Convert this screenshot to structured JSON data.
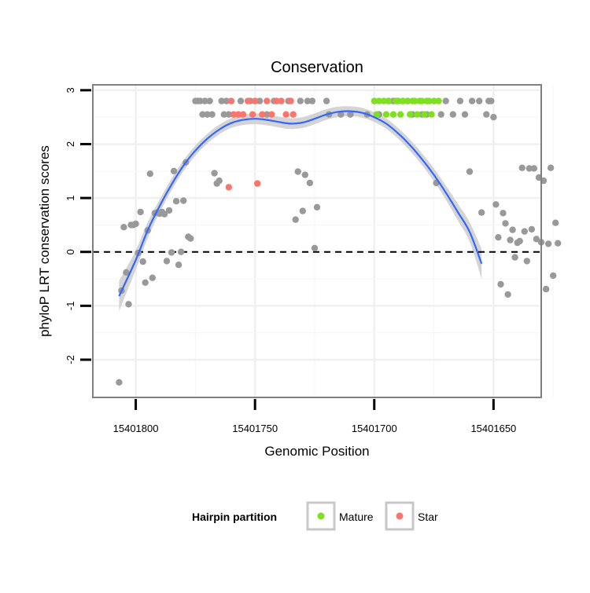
{
  "chart_data": {
    "type": "scatter",
    "title": "Conservation",
    "xlabel": "Genomic Position",
    "ylabel": "phyloP LRT conservation scores",
    "x_reversed": true,
    "xlim": [
      15401818,
      15401630
    ],
    "ylim": [
      -2.7,
      3.1
    ],
    "x_ticks": [
      15401800,
      15401750,
      15401700,
      15401650
    ],
    "x_tick_labels": [
      "15401800",
      "15401750",
      "15401700",
      "15401650"
    ],
    "y_ticks": [
      -2,
      -1,
      0,
      1,
      2,
      3
    ],
    "y_tick_labels": [
      "-2",
      "-1",
      "0",
      "1",
      "2",
      "3"
    ],
    "reference_line": {
      "y": 0,
      "style": "dashed"
    },
    "colors": {
      "Other": "#999999",
      "Mature": "#7fe020",
      "Star": "#f8766d",
      "smooth": "#3366ff",
      "band": "#cccccc"
    },
    "legend": {
      "title": "Hairpin partition",
      "position": "bottom",
      "entries": [
        "Mature",
        "Star"
      ]
    },
    "series": [
      {
        "name": "Other",
        "points": [
          [
            15401807,
            -2.42
          ],
          [
            15401806,
            -0.72
          ],
          [
            15401805,
            0.46
          ],
          [
            15401804,
            -0.38
          ],
          [
            15401803,
            -0.97
          ],
          [
            15401802,
            0.5
          ],
          [
            15401801,
            0.5
          ],
          [
            15401800,
            0.52
          ],
          [
            15401799,
            -0.02
          ],
          [
            15401798,
            0.74
          ],
          [
            15401797,
            -0.18
          ],
          [
            15401796,
            -0.57
          ],
          [
            15401795,
            0.4
          ],
          [
            15401794,
            1.45
          ],
          [
            15401793,
            -0.48
          ],
          [
            15401792,
            0.72
          ],
          [
            15401791,
            0.73
          ],
          [
            15401790,
            0.71
          ],
          [
            15401789,
            0.74
          ],
          [
            15401788,
            0.7
          ],
          [
            15401787,
            -0.17
          ],
          [
            15401786,
            0.77
          ],
          [
            15401785,
            -0.01
          ],
          [
            15401784,
            1.5
          ],
          [
            15401783,
            0.94
          ],
          [
            15401782,
            -0.24
          ],
          [
            15401781,
            0.0
          ],
          [
            15401780,
            0.95
          ],
          [
            15401779,
            1.66
          ],
          [
            15401778,
            0.28
          ],
          [
            15401777,
            0.25
          ],
          [
            15401775,
            2.8
          ],
          [
            15401774,
            2.8
          ],
          [
            15401773,
            2.8
          ],
          [
            15401772,
            2.55
          ],
          [
            15401771,
            2.8
          ],
          [
            15401770,
            2.55
          ],
          [
            15401769,
            2.8
          ],
          [
            15401768,
            2.55
          ],
          [
            15401767,
            1.46
          ],
          [
            15401766,
            1.27
          ],
          [
            15401765,
            1.32
          ],
          [
            15401764,
            2.8
          ],
          [
            15401763,
            2.55
          ],
          [
            15401762,
            2.8
          ],
          [
            15401761,
            2.55
          ],
          [
            15401756,
            2.8
          ],
          [
            15401752,
            2.8
          ],
          [
            15401748,
            2.8
          ],
          [
            15401745,
            2.55
          ],
          [
            15401742,
            2.8
          ],
          [
            15401736,
            2.8
          ],
          [
            15401733,
            0.6
          ],
          [
            15401732,
            1.49
          ],
          [
            15401731,
            2.8
          ],
          [
            15401730,
            0.76
          ],
          [
            15401729,
            1.43
          ],
          [
            15401728,
            2.8
          ],
          [
            15401727,
            1.28
          ],
          [
            15401726,
            2.8
          ],
          [
            15401725,
            0.07
          ],
          [
            15401724,
            0.83
          ],
          [
            15401720,
            2.8
          ],
          [
            15401719,
            2.55
          ],
          [
            15401714,
            2.55
          ],
          [
            15401710,
            2.55
          ],
          [
            15401703,
            2.55
          ],
          [
            15401698,
            2.55
          ],
          [
            15401694,
            2.8
          ],
          [
            15401692,
            2.8
          ],
          [
            15401690,
            2.8
          ],
          [
            15401688,
            2.8
          ],
          [
            15401686,
            2.8
          ],
          [
            15401684,
            2.55
          ],
          [
            15401680,
            2.55
          ],
          [
            15401678,
            2.55
          ],
          [
            15401674,
            1.28
          ],
          [
            15401672,
            2.55
          ],
          [
            15401670,
            2.8
          ],
          [
            15401667,
            2.55
          ],
          [
            15401664,
            2.8
          ],
          [
            15401662,
            2.55
          ],
          [
            15401660,
            1.49
          ],
          [
            15401659,
            2.8
          ],
          [
            15401656,
            2.8
          ],
          [
            15401655,
            0.73
          ],
          [
            15401653,
            2.55
          ],
          [
            15401652,
            2.8
          ],
          [
            15401651,
            2.8
          ],
          [
            15401650,
            2.5
          ],
          [
            15401649,
            0.88
          ],
          [
            15401648,
            0.27
          ],
          [
            15401647,
            -0.6
          ],
          [
            15401646,
            0.72
          ],
          [
            15401645,
            0.53
          ],
          [
            15401644,
            -0.79
          ],
          [
            15401643,
            0.22
          ],
          [
            15401642,
            0.41
          ],
          [
            15401641,
            -0.1
          ],
          [
            15401640,
            0.17
          ],
          [
            15401639,
            0.2
          ],
          [
            15401638,
            1.56
          ],
          [
            15401637,
            0.38
          ],
          [
            15401636,
            -0.17
          ],
          [
            15401635,
            1.55
          ],
          [
            15401634,
            0.42
          ],
          [
            15401633,
            1.55
          ],
          [
            15401632,
            0.24
          ],
          [
            15401631,
            1.38
          ],
          [
            15401630,
            0.18
          ],
          [
            15401629,
            1.32
          ],
          [
            15401628,
            -0.69
          ],
          [
            15401627,
            0.15
          ],
          [
            15401626,
            1.56
          ],
          [
            15401625,
            -0.44
          ],
          [
            15401624,
            0.54
          ],
          [
            15401623,
            0.16
          ]
        ]
      },
      {
        "name": "Star",
        "points": [
          [
            15401761,
            1.2
          ],
          [
            15401760,
            2.8
          ],
          [
            15401759,
            2.55
          ],
          [
            15401757,
            2.55
          ],
          [
            15401755,
            2.55
          ],
          [
            15401753,
            2.8
          ],
          [
            15401751,
            2.55
          ],
          [
            15401750,
            2.8
          ],
          [
            15401749,
            1.27
          ],
          [
            15401747,
            2.55
          ],
          [
            15401745,
            2.8
          ],
          [
            15401743,
            2.55
          ],
          [
            15401741,
            2.8
          ],
          [
            15401739,
            2.8
          ],
          [
            15401737,
            2.55
          ],
          [
            15401735,
            2.8
          ],
          [
            15401734,
            2.55
          ]
        ]
      },
      {
        "name": "Mature",
        "points": [
          [
            15401700,
            2.8
          ],
          [
            15401699,
            2.55
          ],
          [
            15401698,
            2.8
          ],
          [
            15401696,
            2.8
          ],
          [
            15401695,
            2.55
          ],
          [
            15401694,
            2.8
          ],
          [
            15401692,
            2.55
          ],
          [
            15401691,
            2.8
          ],
          [
            15401690,
            2.8
          ],
          [
            15401689,
            2.55
          ],
          [
            15401688,
            2.8
          ],
          [
            15401686,
            2.8
          ],
          [
            15401685,
            2.55
          ],
          [
            15401684,
            2.8
          ],
          [
            15401683,
            2.8
          ],
          [
            15401682,
            2.55
          ],
          [
            15401681,
            2.8
          ],
          [
            15401680,
            2.8
          ],
          [
            15401679,
            2.55
          ],
          [
            15401678,
            2.8
          ],
          [
            15401677,
            2.8
          ],
          [
            15401676,
            2.55
          ],
          [
            15401675,
            2.8
          ],
          [
            15401673,
            2.8
          ]
        ]
      }
    ],
    "smooth_curve": [
      [
        15401807,
        -0.82
      ],
      [
        15401800,
        -0.15
      ],
      [
        15401795,
        0.4
      ],
      [
        15401790,
        0.85
      ],
      [
        15401785,
        1.25
      ],
      [
        15401780,
        1.6
      ],
      [
        15401775,
        1.88
      ],
      [
        15401770,
        2.1
      ],
      [
        15401765,
        2.27
      ],
      [
        15401760,
        2.39
      ],
      [
        15401755,
        2.45
      ],
      [
        15401750,
        2.47
      ],
      [
        15401745,
        2.45
      ],
      [
        15401740,
        2.41
      ],
      [
        15401735,
        2.38
      ],
      [
        15401730,
        2.4
      ],
      [
        15401725,
        2.47
      ],
      [
        15401720,
        2.55
      ],
      [
        15401715,
        2.6
      ],
      [
        15401710,
        2.61
      ],
      [
        15401705,
        2.58
      ],
      [
        15401700,
        2.5
      ],
      [
        15401695,
        2.38
      ],
      [
        15401690,
        2.2
      ],
      [
        15401685,
        1.98
      ],
      [
        15401680,
        1.72
      ],
      [
        15401675,
        1.43
      ],
      [
        15401670,
        1.1
      ],
      [
        15401665,
        0.74
      ],
      [
        15401660,
        0.37
      ],
      [
        15401655,
        -0.22
      ]
    ],
    "band_halfwidth": [
      [
        15401807,
        0.28
      ],
      [
        15401800,
        0.18
      ],
      [
        15401790,
        0.12
      ],
      [
        15401780,
        0.1
      ],
      [
        15401770,
        0.09
      ],
      [
        15401760,
        0.09
      ],
      [
        15401750,
        0.1
      ],
      [
        15401740,
        0.1
      ],
      [
        15401730,
        0.1
      ],
      [
        15401720,
        0.1
      ],
      [
        15401710,
        0.09
      ],
      [
        15401700,
        0.09
      ],
      [
        15401690,
        0.1
      ],
      [
        15401680,
        0.11
      ],
      [
        15401670,
        0.13
      ],
      [
        15401660,
        0.18
      ],
      [
        15401655,
        0.28
      ]
    ]
  }
}
